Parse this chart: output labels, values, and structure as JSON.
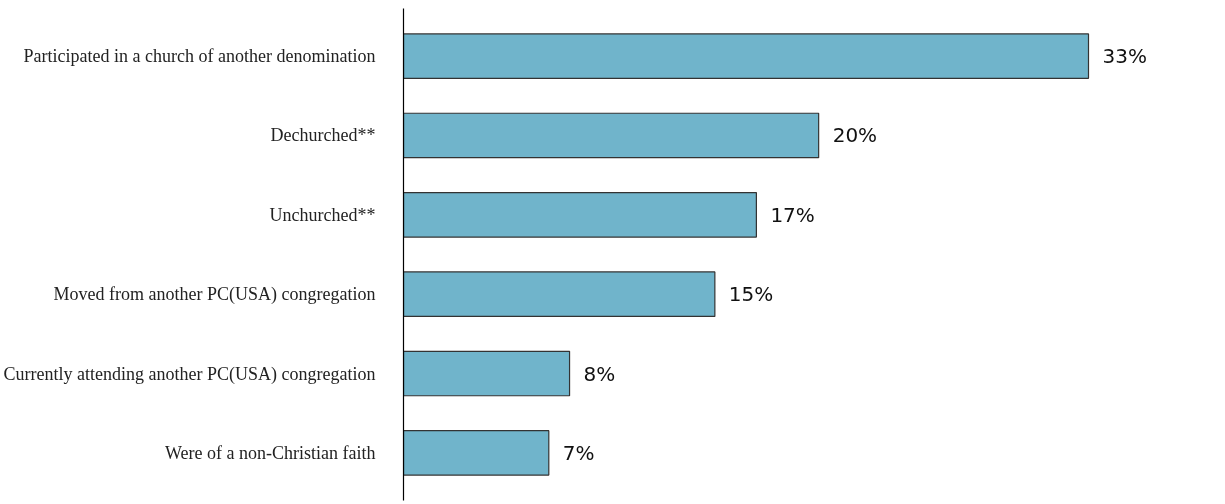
{
  "chart_data": {
    "type": "bar",
    "orientation": "horizontal",
    "categories": [
      "Participated in a church of another denomination",
      "Dechurched**",
      "Unchurched**",
      "Moved from another PC(USA) congregation",
      "Currently attending another PC(USA) congregation",
      "Were of a non-Christian faith"
    ],
    "values": [
      33,
      20,
      17,
      15,
      8,
      7
    ],
    "value_labels": [
      "33%",
      "20%",
      "17%",
      "15%",
      "8%",
      "7%"
    ],
    "color": "#70b4cb"
  }
}
